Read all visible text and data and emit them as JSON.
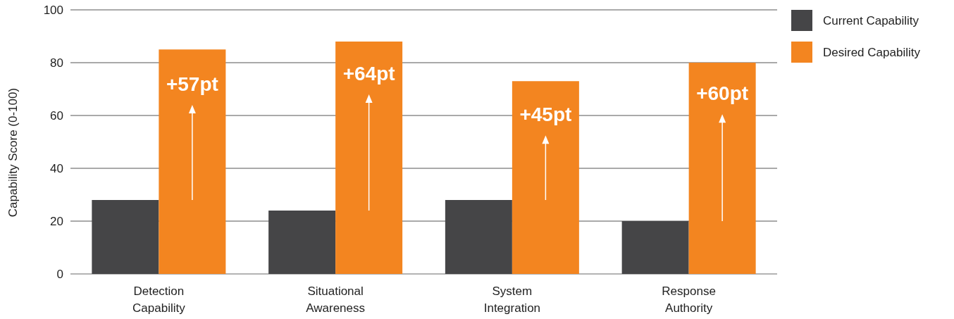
{
  "chart_data": {
    "type": "bar",
    "ylabel": "Capability Score (0-100)",
    "categories": [
      "Detection\nCapability",
      "Situational\nAwareness",
      "System\nIntegration",
      "Response\nAuthority"
    ],
    "series": [
      {
        "name": "Current Capability",
        "color": "#454547",
        "values": [
          28,
          24,
          28,
          20
        ]
      },
      {
        "name": "Desired Capability",
        "color": "#f38520",
        "values": [
          85,
          88,
          73,
          80
        ]
      }
    ],
    "ylim": [
      0,
      100
    ],
    "yticks": [
      0,
      20,
      40,
      60,
      80,
      100
    ],
    "grid": "y",
    "legend": "top right",
    "annotations": [
      {
        "text": "+57pt",
        "x": "Detection\nCapability",
        "y": 72
      },
      {
        "text": "+64pt",
        "x": "Situational\nAwareness",
        "y": 76
      },
      {
        "text": "+45pt",
        "x": "System\nIntegration",
        "y": 60.5
      },
      {
        "text": "+60pt",
        "x": "Response\nAuthority",
        "y": 68.5
      }
    ]
  }
}
